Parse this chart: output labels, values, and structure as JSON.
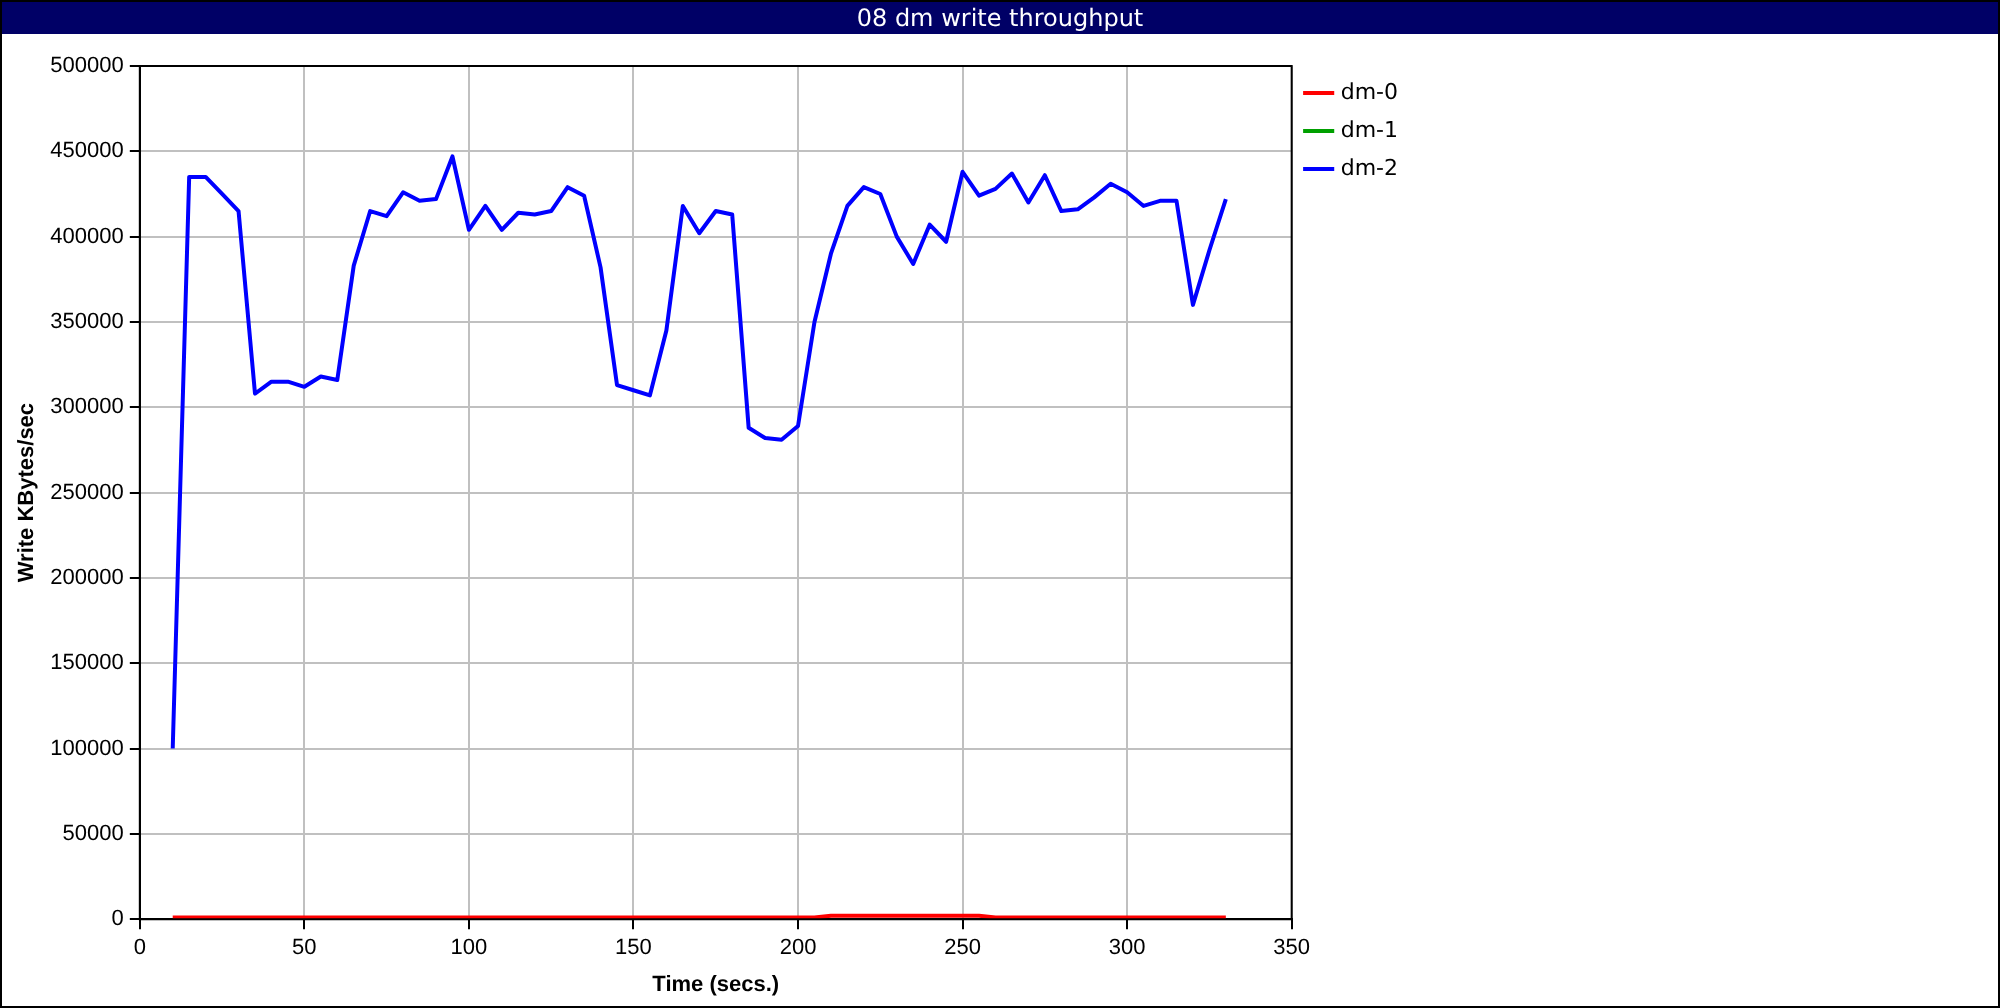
{
  "chart_data": {
    "type": "line",
    "title": "08 dm write throughput",
    "xlabel": "Time (secs.)",
    "ylabel": "Write KBytes/sec",
    "x": [
      10,
      15,
      20,
      25,
      30,
      35,
      40,
      45,
      50,
      55,
      60,
      65,
      70,
      75,
      80,
      85,
      90,
      95,
      100,
      105,
      110,
      115,
      120,
      125,
      130,
      135,
      140,
      145,
      150,
      155,
      160,
      165,
      170,
      175,
      180,
      185,
      190,
      195,
      200,
      205,
      210,
      215,
      220,
      225,
      230,
      235,
      240,
      245,
      250,
      255,
      260,
      265,
      270,
      275,
      280,
      285,
      290,
      295,
      300,
      305,
      310,
      315,
      320,
      325,
      330
    ],
    "series": [
      {
        "name": "dm-0",
        "color": "#ff0000",
        "values": [
          1000,
          1000,
          1000,
          1000,
          1000,
          1000,
          1000,
          1000,
          1000,
          1000,
          1000,
          1000,
          1000,
          1000,
          1000,
          1000,
          1000,
          1000,
          1000,
          1000,
          1000,
          1000,
          1000,
          1000,
          1000,
          1000,
          1000,
          1000,
          1000,
          1000,
          1000,
          1000,
          1000,
          1000,
          1000,
          1000,
          1000,
          1000,
          1000,
          1000,
          2000,
          2000,
          2000,
          2000,
          2000,
          2000,
          2000,
          2000,
          2000,
          2000,
          1000,
          1000,
          1000,
          1000,
          1000,
          1000,
          1000,
          1000,
          1000,
          1000,
          1000,
          1000,
          1000,
          1000,
          1000
        ]
      },
      {
        "name": "dm-1",
        "color": "#00a000",
        "values": [
          null,
          null,
          null,
          null,
          null,
          null,
          null,
          null,
          null,
          null,
          null,
          null,
          null,
          null,
          null,
          null,
          null,
          null,
          null,
          null,
          null,
          null,
          null,
          null,
          null,
          null,
          null,
          null,
          null,
          null,
          null,
          null,
          null,
          null,
          null,
          null,
          null,
          null,
          null,
          null,
          null,
          null,
          null,
          null,
          null,
          null,
          null,
          null,
          null,
          null,
          null,
          null,
          null,
          null,
          null,
          null,
          null,
          null,
          null,
          null,
          null,
          null,
          null,
          null,
          null
        ]
      },
      {
        "name": "dm-2",
        "color": "#0000ff",
        "values": [
          100000,
          435000,
          435000,
          425000,
          415000,
          308000,
          315000,
          315000,
          312000,
          318000,
          316000,
          383000,
          415000,
          412000,
          426000,
          421000,
          422000,
          447000,
          404000,
          418000,
          404000,
          414000,
          413000,
          415000,
          429000,
          424000,
          382000,
          313000,
          310000,
          307000,
          345000,
          418000,
          402000,
          415000,
          413000,
          288000,
          282000,
          281000,
          289000,
          350000,
          390000,
          418000,
          429000,
          425000,
          400000,
          384000,
          407000,
          397000,
          438000,
          424000,
          428000,
          437000,
          420000,
          436000,
          415000,
          416000,
          423000,
          431000,
          426000,
          418000,
          421000,
          421000,
          360000,
          392000,
          422000
        ]
      }
    ],
    "xlim": [
      0,
      350
    ],
    "xticks": [
      0,
      50,
      100,
      150,
      200,
      250,
      300,
      350
    ],
    "ylim": [
      0,
      500000
    ],
    "yticks": [
      0,
      50000,
      100000,
      150000,
      200000,
      250000,
      300000,
      350000,
      400000,
      450000,
      500000
    ],
    "grid": true,
    "legend": "top right",
    "marker": "none",
    "line_style": "solid"
  }
}
